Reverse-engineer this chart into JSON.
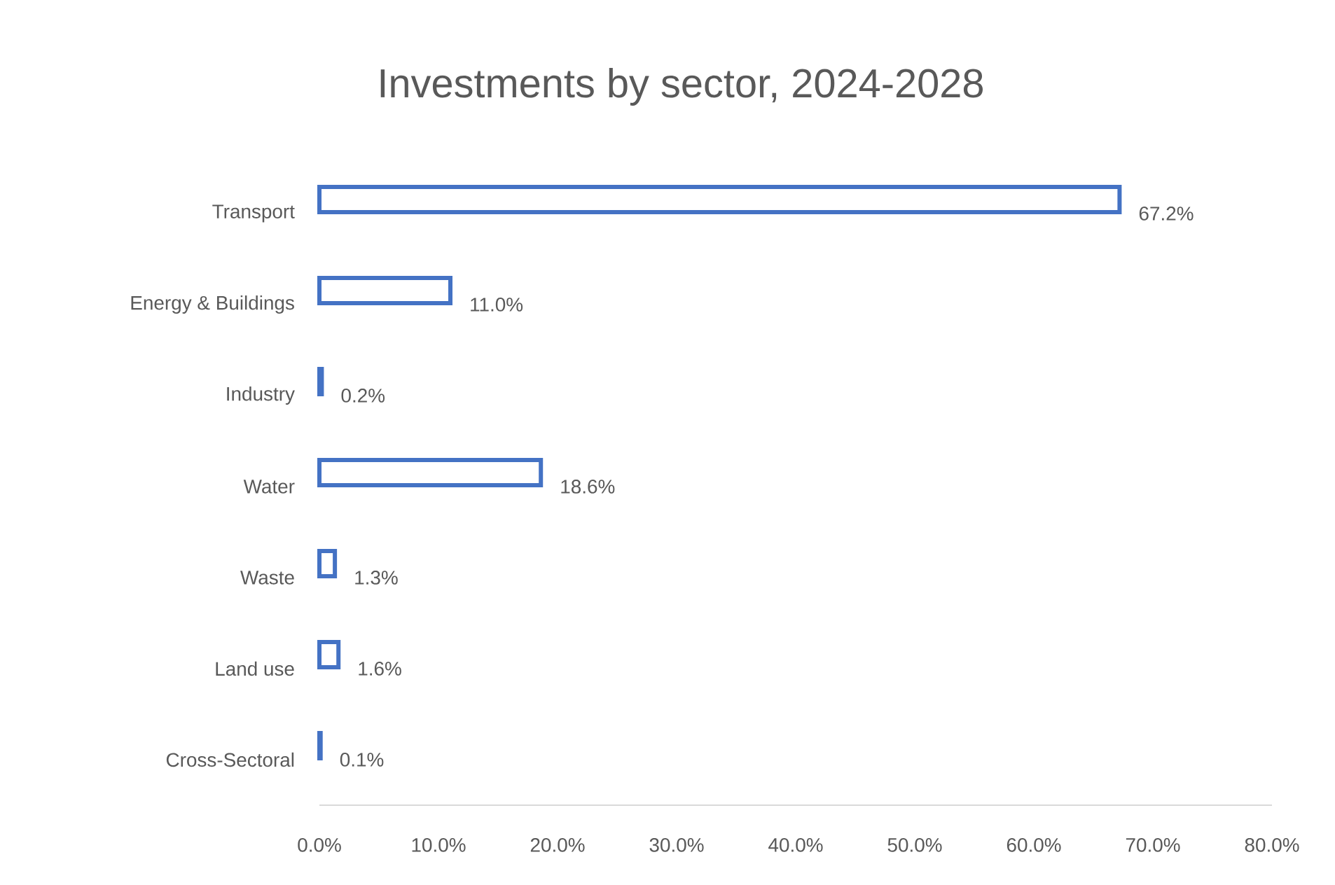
{
  "chart_data": {
    "type": "bar",
    "orientation": "horizontal",
    "title": "Investments by sector, 2024-2028",
    "categories": [
      "Transport",
      "Energy & Buildings",
      "Industry",
      "Water",
      "Waste",
      "Land use",
      "Cross-Sectoral"
    ],
    "values": [
      67.2,
      11.0,
      0.2,
      18.6,
      1.3,
      1.6,
      0.1
    ],
    "value_labels": [
      "67.2%",
      "11.0%",
      "0.2%",
      "18.6%",
      "1.3%",
      "1.6%",
      "0.1%"
    ],
    "color": "#4472c4",
    "xlim": [
      0,
      80
    ],
    "xticks": [
      {
        "value": 0,
        "label": "0.0%"
      },
      {
        "value": 10,
        "label": "10.0%"
      },
      {
        "value": 20,
        "label": "20.0%"
      },
      {
        "value": 30,
        "label": "30.0%"
      },
      {
        "value": 40,
        "label": "40.0%"
      },
      {
        "value": 50,
        "label": "50.0%"
      },
      {
        "value": 60,
        "label": "60.0%"
      },
      {
        "value": 70,
        "label": "70.0%"
      },
      {
        "value": 80,
        "label": "80.0%"
      }
    ]
  }
}
